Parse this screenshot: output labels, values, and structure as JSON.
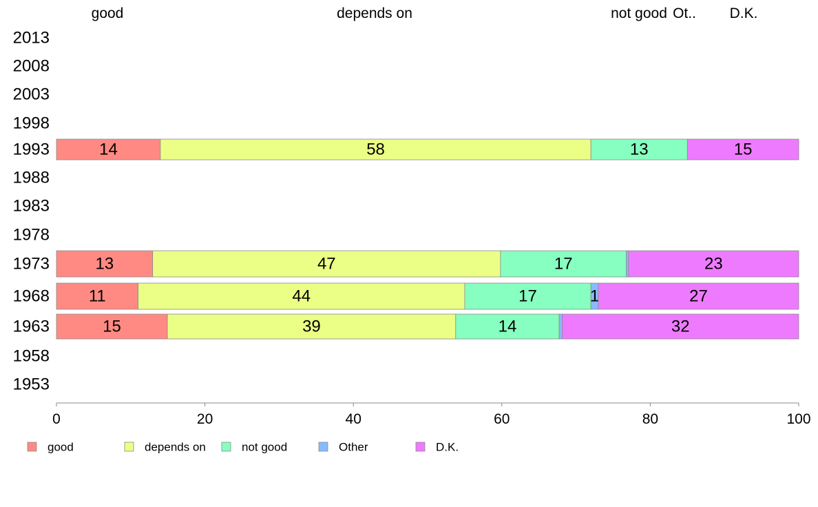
{
  "chart_data": {
    "type": "bar",
    "orientation": "horizontal",
    "stacked": true,
    "categories": [
      "2013",
      "2008",
      "2003",
      "1998",
      "1993",
      "1988",
      "1983",
      "1978",
      "1973",
      "1968",
      "1963",
      "1958",
      "1953"
    ],
    "top_labels": [
      "good",
      "depends on",
      "not good",
      "Ot..",
      "D.K."
    ],
    "series": [
      {
        "name": "good",
        "color": "#FF8A84",
        "values": [
          null,
          null,
          null,
          null,
          14,
          null,
          null,
          null,
          13,
          11,
          15,
          null,
          null
        ]
      },
      {
        "name": "depends on",
        "color": "#EBFF86",
        "values": [
          null,
          null,
          null,
          null,
          58,
          null,
          null,
          null,
          47,
          44,
          39,
          null,
          null
        ]
      },
      {
        "name": "not good",
        "color": "#86FFC0",
        "values": [
          null,
          null,
          null,
          null,
          13,
          null,
          null,
          null,
          17,
          17,
          14,
          null,
          null
        ]
      },
      {
        "name": "Other",
        "color": "#87BBFF",
        "values": [
          null,
          null,
          null,
          null,
          0,
          null,
          null,
          null,
          0.3,
          1,
          0.4,
          null,
          null
        ]
      },
      {
        "name": "D.K.",
        "color": "#EE7BFF",
        "values": [
          null,
          null,
          null,
          null,
          15,
          null,
          null,
          null,
          23,
          27,
          32,
          null,
          null
        ]
      }
    ],
    "data_labels": {
      "1993": [
        "14",
        "58",
        "13",
        "",
        "15"
      ],
      "1973": [
        "13",
        "47",
        "17",
        "",
        "23"
      ],
      "1968": [
        "11",
        "44",
        "17",
        "1",
        "27"
      ],
      "1963": [
        "15",
        "39",
        "14",
        "",
        "32"
      ]
    },
    "xlim": [
      0,
      100
    ],
    "xticks": [
      0,
      20,
      40,
      60,
      80,
      100
    ],
    "title": "",
    "xlabel": "",
    "ylabel": "",
    "grid": false,
    "legend": {
      "position": "bottom",
      "entries": [
        "good",
        "depends on",
        "not good",
        "Other",
        "D.K."
      ]
    }
  }
}
